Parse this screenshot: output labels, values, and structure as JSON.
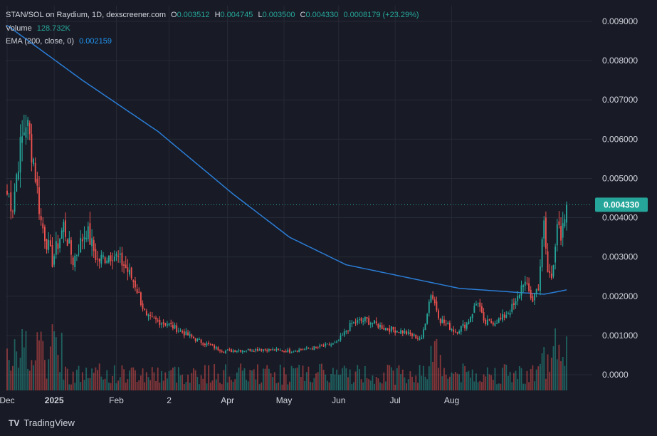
{
  "header": {
    "symbol": "STAN/SOL on Raydium, 1D, dexscreener.com",
    "o_label": "O",
    "o_value": "0.003512",
    "h_label": "H",
    "h_value": "0.004745",
    "l_label": "L",
    "l_value": "0.003500",
    "c_label": "C",
    "c_value": "0.004330",
    "change": "0.0008179 (+23.29%)",
    "volume_label": "Volume",
    "volume_value": "128.732K",
    "ema_label": "EMA (200, close, 0)",
    "ema_value": "0.002159"
  },
  "price_badge": "0.004330",
  "brand": {
    "name": "TradingView",
    "logo": "TV"
  },
  "colors": {
    "bg": "#181a25",
    "grid": "#262a36",
    "up": "#26a69a",
    "down": "#ef5350",
    "ema": "#2a7dd6",
    "badge": "#26a69a"
  },
  "chart_data": {
    "type": "candlestick",
    "y_ticks": [
      "0.009000",
      "0.008000",
      "0.007000",
      "0.006000",
      "0.005000",
      "0.004000",
      "0.003000",
      "0.002000",
      "0.001000",
      "0.0000"
    ],
    "x_ticks": [
      "Dec",
      "2025",
      "Feb",
      "2",
      "Apr",
      "May",
      "Jun",
      "Jul",
      "Aug"
    ],
    "ylim": [
      -0.0004,
      0.0094
    ],
    "last_close": 0.00433,
    "ohlc_keypoints": [
      {
        "i": 0,
        "p": 0.0046
      },
      {
        "i": 3,
        "p": 0.0043
      },
      {
        "i": 6,
        "p": 0.0055
      },
      {
        "i": 10,
        "p": 0.0065
      },
      {
        "i": 14,
        "p": 0.0055
      },
      {
        "i": 18,
        "p": 0.0039
      },
      {
        "i": 24,
        "p": 0.0029
      },
      {
        "i": 30,
        "p": 0.0038
      },
      {
        "i": 35,
        "p": 0.0029
      },
      {
        "i": 42,
        "p": 0.0037
      },
      {
        "i": 48,
        "p": 0.0029
      },
      {
        "i": 56,
        "p": 0.0031
      },
      {
        "i": 62,
        "p": 0.0028
      },
      {
        "i": 68,
        "p": 0.0023
      },
      {
        "i": 74,
        "p": 0.00145
      },
      {
        "i": 85,
        "p": 0.0013
      },
      {
        "i": 100,
        "p": 0.0009
      },
      {
        "i": 115,
        "p": 0.0006
      },
      {
        "i": 135,
        "p": 0.00065
      },
      {
        "i": 150,
        "p": 0.0006
      },
      {
        "i": 165,
        "p": 0.0007
      },
      {
        "i": 175,
        "p": 0.0008
      },
      {
        "i": 183,
        "p": 0.0013
      },
      {
        "i": 190,
        "p": 0.0014
      },
      {
        "i": 200,
        "p": 0.0012
      },
      {
        "i": 210,
        "p": 0.0011
      },
      {
        "i": 220,
        "p": 0.0009
      },
      {
        "i": 225,
        "p": 0.0021
      },
      {
        "i": 230,
        "p": 0.0014
      },
      {
        "i": 238,
        "p": 0.0011
      },
      {
        "i": 244,
        "p": 0.0013
      },
      {
        "i": 250,
        "p": 0.0019
      },
      {
        "i": 253,
        "p": 0.0013
      },
      {
        "i": 262,
        "p": 0.0014
      },
      {
        "i": 270,
        "p": 0.0018
      },
      {
        "i": 274,
        "p": 0.0024
      },
      {
        "i": 279,
        "p": 0.0019
      },
      {
        "i": 282,
        "p": 0.0023
      },
      {
        "i": 285,
        "p": 0.0038
      },
      {
        "i": 287,
        "p": 0.0026
      },
      {
        "i": 289,
        "p": 0.0025
      },
      {
        "i": 292,
        "p": 0.0039
      },
      {
        "i": 294,
        "p": 0.0033
      },
      {
        "i": 297,
        "p": 0.00433
      }
    ],
    "ema_points": [
      [
        0,
        0.0089
      ],
      [
        40,
        0.0075
      ],
      [
        80,
        0.0062
      ],
      [
        120,
        0.0046
      ],
      [
        150,
        0.0035
      ],
      [
        180,
        0.0028
      ],
      [
        210,
        0.0025
      ],
      [
        240,
        0.0022
      ],
      [
        270,
        0.0021
      ],
      [
        285,
        0.00205
      ],
      [
        297,
        0.00216
      ]
    ],
    "volume_max_label": "128.732K"
  }
}
